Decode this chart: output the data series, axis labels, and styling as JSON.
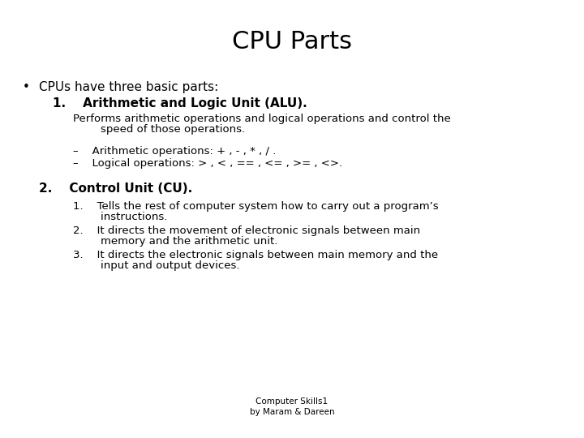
{
  "title": "CPU Parts",
  "background_color": "#ffffff",
  "text_color": "#000000",
  "title_fontsize": 22,
  "bullet_fontsize": 11,
  "bold_fontsize": 11,
  "body_fontsize": 9.5,
  "footer_fontsize": 7.5,
  "footer1": "Computer Skills1",
  "footer2": "by Maram & Dareen",
  "bullet": "•",
  "bullet_text": "CPUs have three basic parts:",
  "item1_bold": "1.    Arithmetic and Logic Unit (ALU).",
  "item1_desc_line1": "Performs arithmetic operations and logical operations and control the",
  "item1_desc_line2": "        speed of those operations.",
  "dash1": "–    Arithmetic operations: + , - , * , / .",
  "dash2": "–    Logical operations: > , < , == , <= , >= , <>.",
  "item2_bold": "2.    Control Unit (CU).",
  "sub1_line1": "1.    Tells the rest of computer system how to carry out a program’s",
  "sub1_line2": "        instructions.",
  "sub2_line1": "2.    It directs the movement of electronic signals between main",
  "sub2_line2": "        memory and the arithmetic unit.",
  "sub3_line1": "3.    It directs the electronic signals between main memory and the",
  "sub3_line2": "        input and output devices."
}
